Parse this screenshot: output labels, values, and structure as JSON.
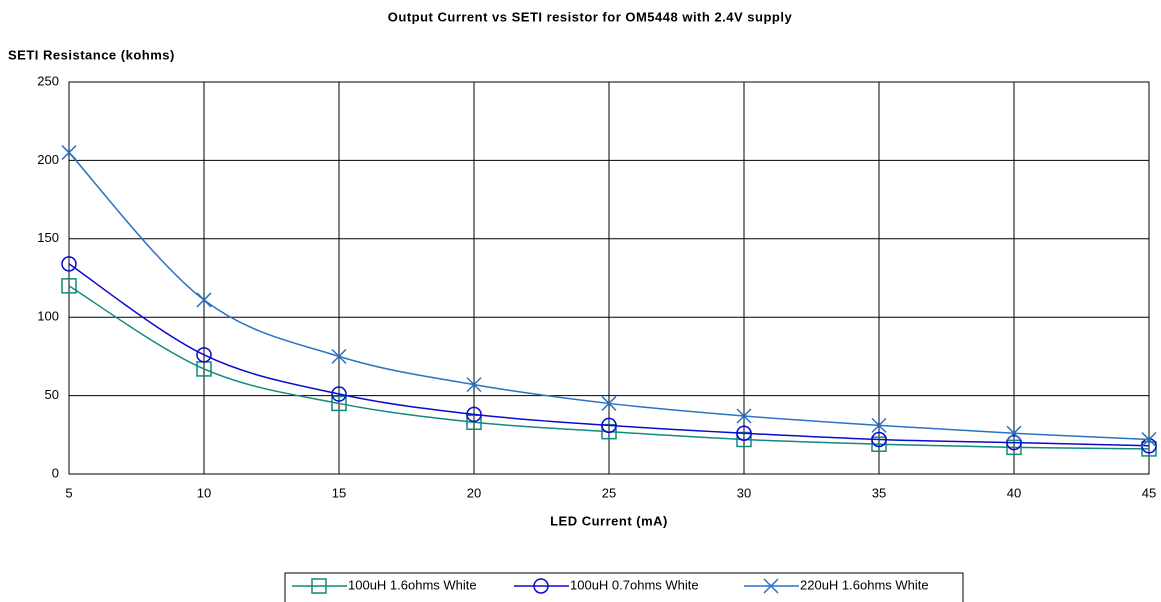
{
  "chart_data": {
    "type": "line",
    "title": "Output Current vs SETI resistor for OM5448 with 2.4V supply",
    "y_label": "SETI Resistance (kohms)",
    "x_label": "LED Current (mA)",
    "x": [
      5,
      10,
      15,
      20,
      25,
      30,
      35,
      40,
      45
    ],
    "series": [
      {
        "name": "100uH 1.6ohms White",
        "color": "#12897a",
        "marker": "square",
        "values": [
          120,
          67,
          45,
          33,
          27,
          22,
          19,
          17,
          16
        ]
      },
      {
        "name": "100uH 0.7ohms White",
        "color": "#0a0ad0",
        "marker": "circle",
        "values": [
          134,
          76,
          51,
          38,
          31,
          26,
          22,
          20,
          18
        ]
      },
      {
        "name": "220uH 1.6ohms White",
        "color": "#2a72c4",
        "marker": "x",
        "values": [
          205,
          111,
          75,
          57,
          45,
          37,
          31,
          26,
          22
        ]
      }
    ],
    "xlim": [
      5,
      45
    ],
    "xticks": [
      5,
      10,
      15,
      20,
      25,
      30,
      35,
      40,
      45
    ],
    "ylim": [
      0,
      250
    ],
    "yticks": [
      0,
      50,
      100,
      150,
      200,
      250
    ],
    "grid": true,
    "legend": "bottom"
  }
}
